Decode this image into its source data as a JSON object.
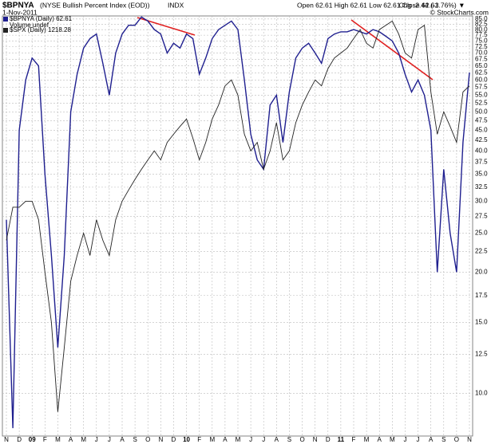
{
  "chart_data": {
    "type": "line",
    "title": "$BPNYA",
    "subtitle": "(NYSE Bullish Percent Index (EOD))",
    "exchange": "INDX",
    "date": "1-Nov-2011",
    "quote": "Open 62.61 High 62.61 Low 62.61 Close 62.61",
    "change": "Chg -2.44 (-3.76%) ▼",
    "credit": "© StockCharts.com",
    "legend_extra": "Volume undef",
    "log_scale": true,
    "grid": true,
    "legend": "upper left",
    "categories": [
      "N",
      null,
      "D",
      null,
      "09",
      null,
      "F",
      null,
      "M",
      null,
      "A",
      null,
      "M",
      null,
      "J",
      null,
      "J",
      null,
      "A",
      null,
      "S",
      null,
      "O",
      null,
      "N",
      null,
      "D",
      null,
      "10",
      null,
      "F",
      null,
      "M",
      null,
      "A",
      null,
      "M",
      null,
      "J",
      null,
      "J",
      null,
      "A",
      null,
      "S",
      null,
      "O",
      null,
      "N",
      null,
      "D",
      null,
      "11",
      null,
      "F",
      null,
      "M",
      null,
      "A",
      null,
      "M",
      null,
      "J",
      null,
      "J",
      null,
      "A",
      null,
      "S",
      null,
      "O",
      null,
      "N"
    ],
    "series": [
      {
        "name": "$BPNYA (Daily) 62.61",
        "color": "#1f1f8f",
        "values": [
          27,
          8.2,
          45,
          60,
          68,
          65,
          35,
          22,
          13,
          22,
          50,
          62,
          72,
          76,
          78,
          66,
          55,
          70,
          78,
          82,
          82,
          86,
          84,
          80,
          78,
          70,
          74,
          72,
          78,
          76,
          62,
          68,
          76,
          80,
          82,
          84,
          80,
          60,
          44,
          38,
          36,
          52,
          55,
          42,
          56,
          68,
          72,
          74,
          70,
          66,
          76,
          78,
          79,
          79,
          80,
          79,
          78,
          80,
          79,
          77,
          75,
          70,
          62,
          56,
          60,
          55,
          45,
          20,
          36,
          25,
          20,
          42,
          62.61
        ]
      },
      {
        "name": "$SPX (Daily) 1218.28",
        "color": "#222222",
        "values": [
          24,
          29,
          29,
          30,
          30,
          27,
          20,
          15,
          9,
          13,
          19,
          22,
          25,
          22,
          27,
          24,
          22,
          27,
          30,
          32,
          34,
          36,
          38,
          40,
          38,
          42,
          44,
          46,
          48,
          43,
          38,
          42,
          48,
          52,
          58,
          60,
          55,
          44,
          40,
          42,
          36,
          40,
          47,
          38,
          40,
          47,
          52,
          56,
          60,
          58,
          64,
          68,
          70,
          72,
          76,
          80,
          74,
          72,
          80,
          82,
          84,
          78,
          70,
          68,
          80,
          82,
          56,
          44,
          50,
          46,
          42,
          56,
          58
        ]
      }
    ],
    "ylim": [
      7.84,
      86.5
    ],
    "yticks": [
      {
        "value": 10,
        "label": "10.0"
      },
      12.5,
      {
        "value": 15,
        "label": "15.0"
      },
      17.5,
      {
        "value": 20,
        "label": "20.0"
      },
      22.5,
      {
        "value": 25,
        "label": "25.0"
      },
      27.5,
      {
        "value": 30,
        "label": "30.0"
      },
      32.5,
      {
        "value": 35,
        "label": "35.0"
      },
      37.5,
      {
        "value": 40,
        "label": "40.0"
      },
      42.5,
      {
        "value": 45,
        "label": "45.0"
      },
      47.5,
      {
        "value": 50,
        "label": "50.0"
      },
      52.5,
      {
        "value": 55,
        "label": "55.0"
      },
      57.5,
      {
        "value": 60,
        "label": "60.0"
      },
      62.5,
      {
        "value": 65,
        "label": "65.0"
      },
      67.5,
      {
        "value": 70,
        "label": "70.0"
      },
      72.5,
      {
        "value": 75,
        "label": "75.0"
      },
      77.5,
      {
        "value": 80,
        "label": "80.0"
      },
      82.5,
      {
        "value": 85,
        "label": "85.0"
      }
    ]
  }
}
